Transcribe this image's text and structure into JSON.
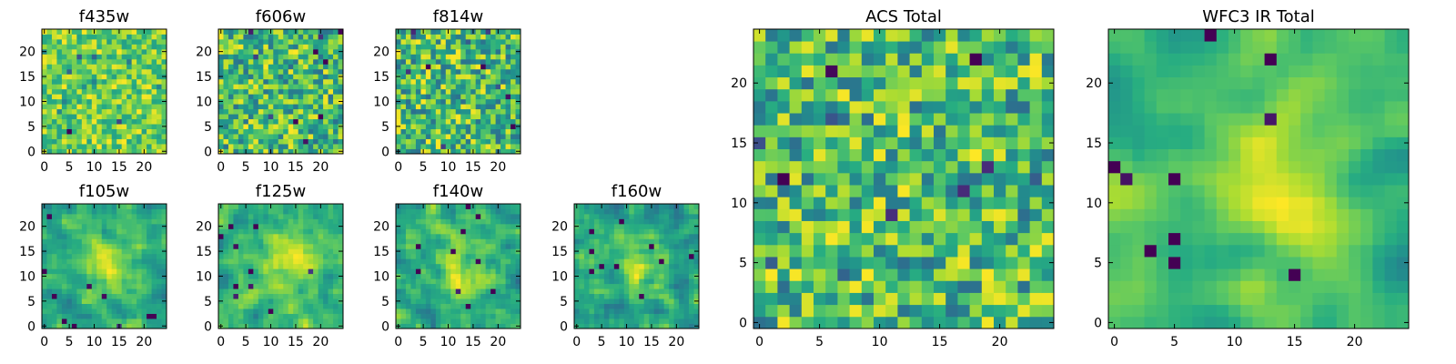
{
  "chart_data": [
    {
      "id": "f435w",
      "type": "heatmap",
      "title": "f435w",
      "xlim": [
        0,
        24
      ],
      "ylim": [
        0,
        24
      ],
      "xticks": [
        "0",
        "5",
        "10",
        "15",
        "20"
      ],
      "yticks": [
        "0",
        "5",
        "10",
        "15",
        "20"
      ],
      "colormap": "viridis",
      "grid_size": 25,
      "seed": 435,
      "smooth": 0
    },
    {
      "id": "f606w",
      "type": "heatmap",
      "title": "f606w",
      "xlim": [
        0,
        24
      ],
      "ylim": [
        0,
        24
      ],
      "xticks": [
        "0",
        "5",
        "10",
        "15",
        "20"
      ],
      "yticks": [
        "0",
        "5",
        "10",
        "15",
        "20"
      ],
      "colormap": "viridis",
      "grid_size": 25,
      "seed": 606,
      "smooth": 0
    },
    {
      "id": "f814w",
      "type": "heatmap",
      "title": "f814w",
      "xlim": [
        0,
        24
      ],
      "ylim": [
        0,
        24
      ],
      "xticks": [
        "0",
        "5",
        "10",
        "15",
        "20"
      ],
      "yticks": [
        "0",
        "5",
        "10",
        "15",
        "20"
      ],
      "colormap": "viridis",
      "grid_size": 25,
      "seed": 814,
      "smooth": 0
    },
    {
      "id": "f105w",
      "type": "heatmap",
      "title": "f105w",
      "xlim": [
        0,
        24
      ],
      "ylim": [
        0,
        24
      ],
      "xticks": [
        "0",
        "5",
        "10",
        "15",
        "20"
      ],
      "yticks": [
        "0",
        "5",
        "10",
        "15",
        "20"
      ],
      "colormap": "viridis",
      "grid_size": 25,
      "seed": 105,
      "smooth": 1
    },
    {
      "id": "f125w",
      "type": "heatmap",
      "title": "f125w",
      "xlim": [
        0,
        24
      ],
      "ylim": [
        0,
        24
      ],
      "xticks": [
        "0",
        "5",
        "10",
        "15",
        "20"
      ],
      "yticks": [
        "0",
        "5",
        "10",
        "15",
        "20"
      ],
      "colormap": "viridis",
      "grid_size": 25,
      "seed": 125,
      "smooth": 1
    },
    {
      "id": "f140w",
      "type": "heatmap",
      "title": "f140w",
      "xlim": [
        0,
        24
      ],
      "ylim": [
        0,
        24
      ],
      "xticks": [
        "0",
        "5",
        "10",
        "15",
        "20"
      ],
      "yticks": [
        "0",
        "5",
        "10",
        "15",
        "20"
      ],
      "colormap": "viridis",
      "grid_size": 25,
      "seed": 140,
      "smooth": 1
    },
    {
      "id": "f160w",
      "type": "heatmap",
      "title": "f160w",
      "xlim": [
        0,
        24
      ],
      "ylim": [
        0,
        24
      ],
      "xticks": [
        "0",
        "5",
        "10",
        "15",
        "20"
      ],
      "yticks": [
        "0",
        "5",
        "10",
        "15",
        "20"
      ],
      "colormap": "viridis",
      "grid_size": 25,
      "seed": 160,
      "smooth": 1
    },
    {
      "id": "acs_total",
      "type": "heatmap",
      "title": "ACS Total",
      "xlim": [
        0,
        24
      ],
      "ylim": [
        0,
        24
      ],
      "xticks": [
        "0",
        "5",
        "10",
        "15",
        "20"
      ],
      "yticks": [
        "0",
        "5",
        "10",
        "15",
        "20"
      ],
      "colormap": "viridis",
      "grid_size": 25,
      "seed": 7,
      "smooth": 0
    },
    {
      "id": "wfc3_ir_total",
      "type": "heatmap",
      "title": "WFC3 IR Total",
      "xlim": [
        0,
        24
      ],
      "ylim": [
        0,
        24
      ],
      "xticks": [
        "0",
        "5",
        "10",
        "15",
        "20"
      ],
      "yticks": [
        "0",
        "5",
        "10",
        "15",
        "20"
      ],
      "colormap": "viridis",
      "grid_size": 25,
      "seed": 3,
      "smooth": 2
    }
  ]
}
